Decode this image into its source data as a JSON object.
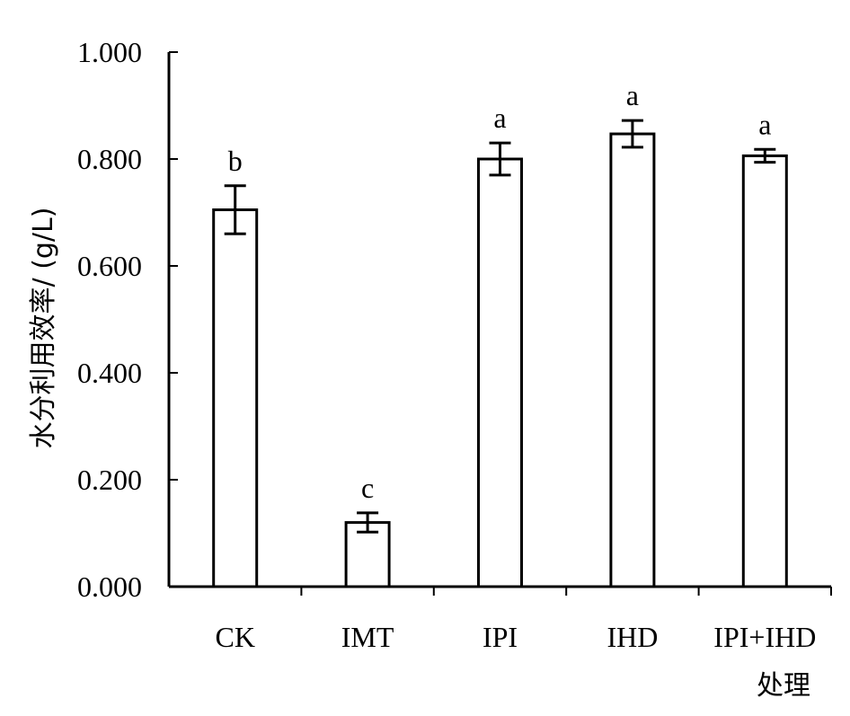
{
  "chart_data": {
    "type": "bar",
    "categories": [
      "CK",
      "IMT",
      "IPI",
      "IHD",
      "IPI+IHD"
    ],
    "values": [
      0.705,
      0.12,
      0.8,
      0.847,
      0.806
    ],
    "errors": [
      0.045,
      0.018,
      0.03,
      0.025,
      0.012
    ],
    "significance": [
      "b",
      "c",
      "a",
      "a",
      "a"
    ],
    "xlabel": "处理",
    "ylabel": "水分利用效率/ (g/L)",
    "ylim": [
      0,
      1.0
    ],
    "yticks": [
      "0.000",
      "0.200",
      "0.400",
      "0.600",
      "0.800",
      "1.000"
    ],
    "ytick_values": [
      0,
      0.2,
      0.4,
      0.6,
      0.8,
      1.0
    ],
    "grid": false,
    "legend": "none",
    "bar_color": "#ffffff",
    "edge_color": "#000000"
  }
}
